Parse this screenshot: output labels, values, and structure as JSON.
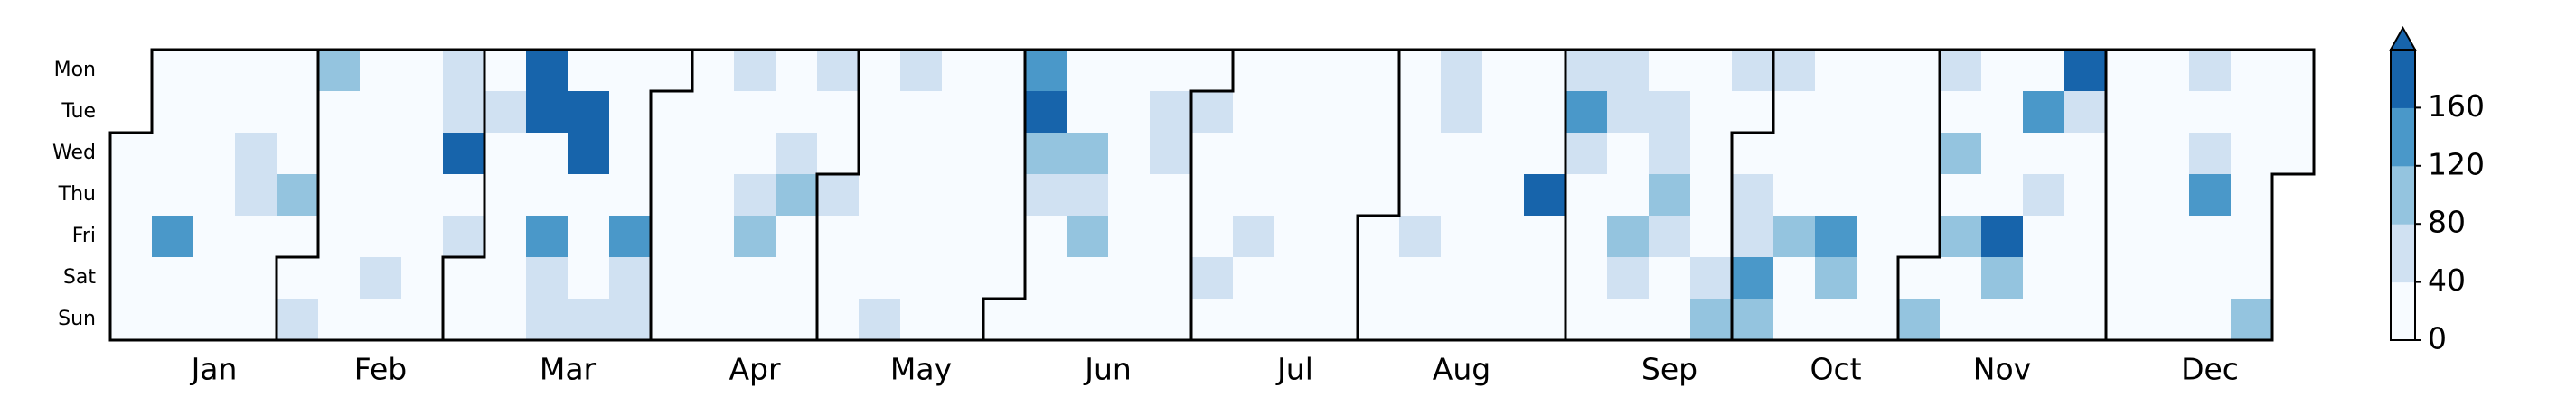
{
  "chart_data": {
    "type": "calendar-heatmap",
    "days": [
      "Mon",
      "Tue",
      "Wed",
      "Thu",
      "Fri",
      "Sat",
      "Sun"
    ],
    "months": [
      "Jan",
      "Feb",
      "Mar",
      "Apr",
      "May",
      "Jun",
      "Jul",
      "Aug",
      "Sep",
      "Oct",
      "Nov",
      "Dec"
    ],
    "values": [
      [
        null,
        null,
        10,
        10,
        10,
        10,
        10
      ],
      [
        10,
        10,
        10,
        10,
        140,
        10,
        10
      ],
      [
        10,
        10,
        10,
        10,
        10,
        10,
        10
      ],
      [
        10,
        10,
        60,
        60,
        10,
        10,
        10
      ],
      [
        10,
        10,
        10,
        100,
        10,
        10,
        60
      ],
      [
        100,
        10,
        10,
        10,
        10,
        10,
        10
      ],
      [
        10,
        10,
        10,
        10,
        10,
        60,
        10
      ],
      [
        10,
        10,
        10,
        10,
        10,
        10,
        10
      ],
      [
        60,
        60,
        180,
        10,
        60,
        10,
        10
      ],
      [
        10,
        60,
        10,
        10,
        10,
        10,
        10
      ],
      [
        180,
        180,
        10,
        10,
        140,
        60,
        60
      ],
      [
        10,
        180,
        180,
        10,
        10,
        10,
        60
      ],
      [
        10,
        10,
        10,
        10,
        140,
        60,
        60
      ],
      [
        10,
        10,
        10,
        10,
        10,
        10,
        10
      ],
      [
        10,
        10,
        10,
        10,
        10,
        10,
        10
      ],
      [
        60,
        10,
        10,
        60,
        100,
        10,
        10
      ],
      [
        10,
        10,
        60,
        100,
        10,
        10,
        10
      ],
      [
        60,
        10,
        10,
        60,
        10,
        10,
        10
      ],
      [
        10,
        10,
        10,
        10,
        10,
        10,
        60
      ],
      [
        60,
        10,
        10,
        10,
        10,
        10,
        10
      ],
      [
        10,
        10,
        10,
        10,
        10,
        10,
        10
      ],
      [
        10,
        10,
        10,
        10,
        10,
        10,
        10
      ],
      [
        140,
        180,
        100,
        60,
        10,
        10,
        10
      ],
      [
        10,
        10,
        100,
        60,
        100,
        10,
        10
      ],
      [
        10,
        10,
        10,
        10,
        10,
        10,
        10
      ],
      [
        10,
        60,
        60,
        10,
        10,
        10,
        10
      ],
      [
        10,
        60,
        10,
        10,
        10,
        60,
        10
      ],
      [
        10,
        10,
        10,
        10,
        60,
        10,
        10
      ],
      [
        10,
        10,
        10,
        10,
        10,
        10,
        10
      ],
      [
        10,
        10,
        10,
        10,
        10,
        10,
        10
      ],
      [
        10,
        10,
        10,
        10,
        10,
        10,
        10
      ],
      [
        10,
        10,
        10,
        10,
        60,
        10,
        10
      ],
      [
        60,
        60,
        10,
        10,
        10,
        10,
        10
      ],
      [
        10,
        10,
        10,
        10,
        10,
        10,
        10
      ],
      [
        10,
        10,
        10,
        180,
        10,
        10,
        10
      ],
      [
        60,
        140,
        60,
        10,
        10,
        10,
        10
      ],
      [
        60,
        60,
        10,
        10,
        100,
        60,
        10
      ],
      [
        10,
        60,
        60,
        100,
        60,
        10,
        10
      ],
      [
        10,
        10,
        10,
        10,
        10,
        60,
        100
      ],
      [
        60,
        10,
        10,
        60,
        60,
        140,
        100
      ],
      [
        60,
        10,
        10,
        10,
        100,
        10,
        10
      ],
      [
        10,
        10,
        10,
        10,
        140,
        100,
        10
      ],
      [
        10,
        10,
        10,
        10,
        10,
        10,
        10
      ],
      [
        10,
        10,
        10,
        10,
        10,
        10,
        100
      ],
      [
        60,
        10,
        100,
        10,
        100,
        10,
        10
      ],
      [
        10,
        10,
        10,
        10,
        180,
        100,
        10
      ],
      [
        10,
        140,
        10,
        60,
        10,
        10,
        10
      ],
      [
        180,
        60,
        10,
        10,
        10,
        10,
        10
      ],
      [
        10,
        10,
        10,
        10,
        10,
        10,
        10
      ],
      [
        10,
        10,
        10,
        10,
        10,
        10,
        10
      ],
      [
        60,
        10,
        60,
        140,
        10,
        10,
        10
      ],
      [
        10,
        10,
        10,
        10,
        10,
        10,
        100
      ],
      [
        10,
        10,
        10,
        null,
        null,
        null,
        null
      ]
    ],
    "colors": [
      "#f7fbff",
      "#d0e1f2",
      "#94c4df",
      "#4a98c9",
      "#1764ab"
    ],
    "clim": [
      0,
      200
    ],
    "cticks": [
      0,
      40,
      80,
      120,
      160
    ],
    "extend": "max"
  }
}
